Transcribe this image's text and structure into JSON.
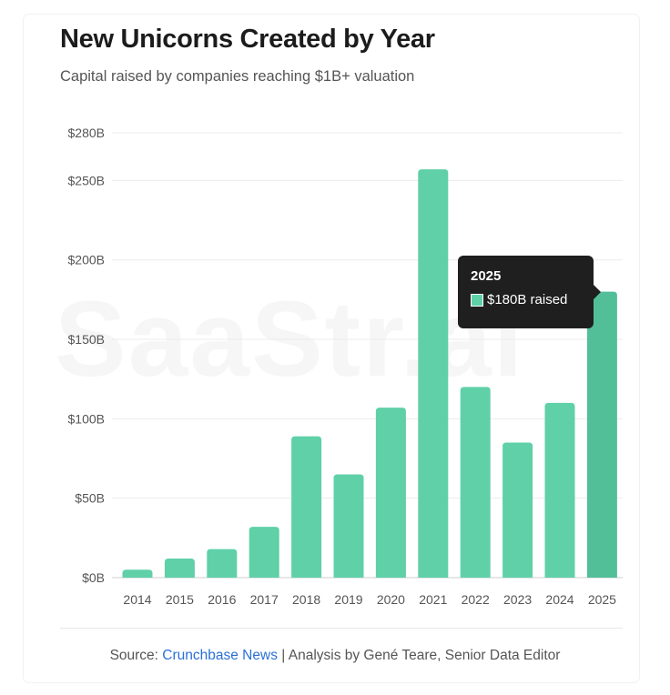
{
  "header": {
    "title": "New Unicorns Created by Year",
    "subtitle": "Capital raised by companies reaching $1B+ valuation"
  },
  "watermark": "SaaStr.ai",
  "chart_data": {
    "type": "bar",
    "categories": [
      "2014",
      "2015",
      "2016",
      "2017",
      "2018",
      "2019",
      "2020",
      "2021",
      "2022",
      "2023",
      "2024",
      "2025"
    ],
    "values": [
      5,
      12,
      18,
      32,
      89,
      65,
      107,
      257,
      120,
      85,
      110,
      180
    ],
    "unit": "B",
    "y_ticks": [
      0,
      50,
      100,
      150,
      200,
      250,
      280
    ],
    "y_tick_labels": [
      "$0B",
      "$50B",
      "$100B",
      "$150B",
      "$200B",
      "$250B",
      "$280B"
    ],
    "ylim": [
      0,
      280
    ],
    "grid": true,
    "bar_color": "#5fd0a8",
    "highlight_color": "#52bf98",
    "highlight_index": 11
  },
  "tooltip": {
    "year": "2025",
    "value_label": "$180B raised"
  },
  "footer": {
    "source_prefix": "Source: ",
    "source_link": "Crunchbase News",
    "source_suffix": " | Analysis by Gené Teare, Senior Data Editor"
  }
}
